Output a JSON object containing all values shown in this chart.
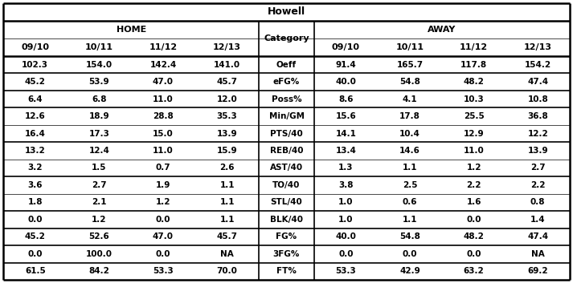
{
  "title": "Howell",
  "home_header": "HOME",
  "away_header": "AWAY",
  "category_header": "Category",
  "year_cols": [
    "09/10",
    "10/11",
    "11/12",
    "12/13"
  ],
  "categories": [
    "Oeff",
    "eFG%",
    "Poss%",
    "Min/GM",
    "PTS/40",
    "REB/40",
    "AST/40",
    "TO/40",
    "STL/40",
    "BLK/40",
    "FG%",
    "3FG%",
    "FT%"
  ],
  "home_data": [
    [
      "102.3",
      "154.0",
      "142.4",
      "141.0"
    ],
    [
      "45.2",
      "53.9",
      "47.0",
      "45.7"
    ],
    [
      "6.4",
      "6.8",
      "11.0",
      "12.0"
    ],
    [
      "12.6",
      "18.9",
      "28.8",
      "35.3"
    ],
    [
      "16.4",
      "17.3",
      "15.0",
      "13.9"
    ],
    [
      "13.2",
      "12.4",
      "11.0",
      "15.9"
    ],
    [
      "3.2",
      "1.5",
      "0.7",
      "2.6"
    ],
    [
      "3.6",
      "2.7",
      "1.9",
      "1.1"
    ],
    [
      "1.8",
      "2.1",
      "1.2",
      "1.1"
    ],
    [
      "0.0",
      "1.2",
      "0.0",
      "1.1"
    ],
    [
      "45.2",
      "52.6",
      "47.0",
      "45.7"
    ],
    [
      "0.0",
      "100.0",
      "0.0",
      "NA"
    ],
    [
      "61.5",
      "84.2",
      "53.3",
      "70.0"
    ]
  ],
  "away_data": [
    [
      "91.4",
      "165.7",
      "117.8",
      "154.2"
    ],
    [
      "40.0",
      "54.8",
      "48.2",
      "47.4"
    ],
    [
      "8.6",
      "4.1",
      "10.3",
      "10.8"
    ],
    [
      "15.6",
      "17.8",
      "25.5",
      "36.8"
    ],
    [
      "14.1",
      "10.4",
      "12.9",
      "12.2"
    ],
    [
      "13.4",
      "14.6",
      "11.0",
      "13.9"
    ],
    [
      "1.3",
      "1.1",
      "1.2",
      "2.7"
    ],
    [
      "3.8",
      "2.5",
      "2.2",
      "2.2"
    ],
    [
      "1.0",
      "0.6",
      "1.6",
      "0.8"
    ],
    [
      "1.0",
      "1.1",
      "0.0",
      "1.4"
    ],
    [
      "40.0",
      "54.8",
      "48.2",
      "47.4"
    ],
    [
      "0.0",
      "0.0",
      "0.0",
      "NA"
    ],
    [
      "53.3",
      "42.9",
      "63.2",
      "69.2"
    ]
  ],
  "group_separators_after": [
    1,
    2,
    3,
    5,
    7,
    9,
    10,
    11,
    12
  ],
  "bg_color": "#ffffff",
  "line_color": "#000000",
  "text_color": "#000000",
  "title_fontsize": 9,
  "header_fontsize": 8,
  "data_fontsize": 7.5
}
